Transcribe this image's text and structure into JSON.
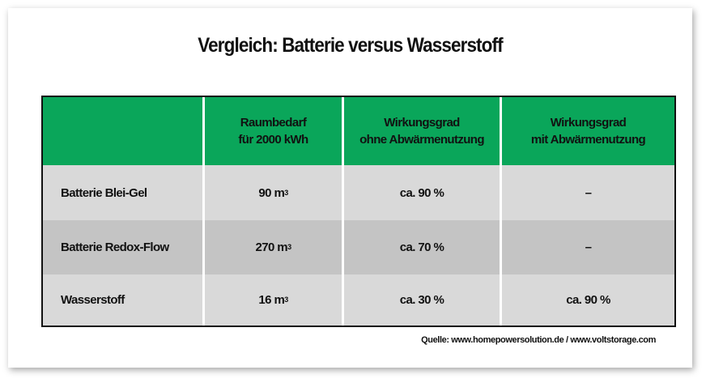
{
  "title": "Vergleich: Batterie versus Wasserstoff",
  "colors": {
    "header": "#0aa65a",
    "row_light": "#d9d9d9",
    "row_dark": "#c4c4c4"
  },
  "table": {
    "headers": [
      "",
      "Raumbedarf\nfür 2000 kWh",
      "Wirkungsgrad\nohne Abwärmenutzung",
      "Wirkungsgrad\nmit Abwärmenutzung"
    ],
    "header_lines": [
      [
        "",
        ""
      ],
      [
        "Raumbedarf",
        "für 2000 kWh"
      ],
      [
        "Wirkungsgrad",
        "ohne Abwärmenutzung"
      ],
      [
        "Wirkungsgrad",
        "mit Abwärmenutzung"
      ]
    ],
    "unit_sup": "3",
    "rows": [
      {
        "name": "Batterie Blei-Gel",
        "space": "90 m",
        "eff_without": "ca. 90 %",
        "eff_with": "–"
      },
      {
        "name": "Batterie Redox-Flow",
        "space": "270 m",
        "eff_without": "ca. 70 %",
        "eff_with": "–"
      },
      {
        "name": "Wasserstoff",
        "space": "16 m",
        "eff_without": "ca. 30 %",
        "eff_with": "ca. 90 %"
      }
    ]
  },
  "source": "Quelle: www.homepowersolution.de / www.voltstorage.com"
}
